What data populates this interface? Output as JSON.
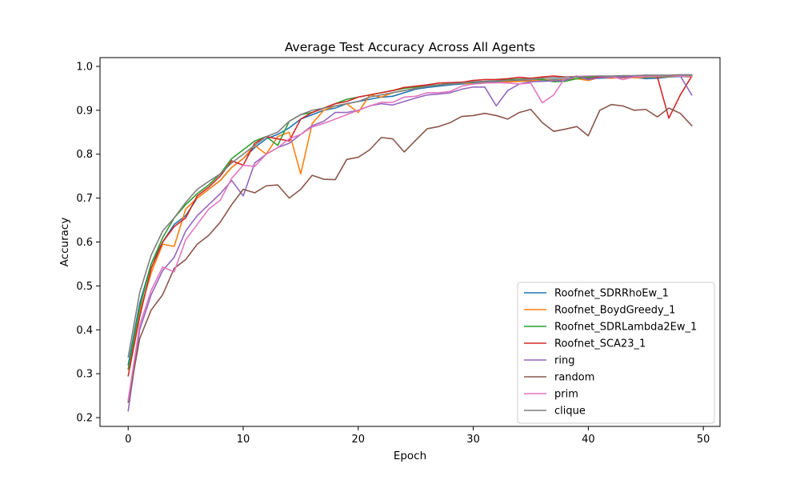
{
  "chart_data": {
    "type": "line",
    "title": "Average Test Accuracy Across All Agents",
    "xlabel": "Epoch",
    "ylabel": "Accuracy",
    "xlim": [
      -2.45,
      51.45
    ],
    "ylim": [
      0.18,
      1.02
    ],
    "xticks": [
      "0",
      "10",
      "20",
      "30",
      "40",
      "50"
    ],
    "yticks": [
      "0.2",
      "0.3",
      "0.4",
      "0.5",
      "0.6",
      "0.7",
      "0.8",
      "0.9",
      "1.0"
    ],
    "grid": false,
    "legend_position": "lower-right",
    "series": [
      {
        "name": "Roofnet_SDRRhoEw_1",
        "color": "#1f77b4",
        "values": [
          0.32,
          0.46,
          0.55,
          0.6,
          0.64,
          0.66,
          0.7,
          0.72,
          0.74,
          0.77,
          0.79,
          0.815,
          0.835,
          0.845,
          0.86,
          0.88,
          0.89,
          0.9,
          0.905,
          0.915,
          0.92,
          0.925,
          0.93,
          0.932,
          0.94,
          0.948,
          0.952,
          0.955,
          0.958,
          0.96,
          0.962,
          0.963,
          0.965,
          0.966,
          0.967,
          0.968,
          0.969,
          0.97,
          0.971,
          0.972,
          0.972,
          0.973,
          0.974,
          0.974,
          0.975,
          0.972,
          0.973,
          0.976,
          0.977,
          0.976
        ]
      },
      {
        "name": "Roofnet_BoydGreedy_1",
        "color": "#ff7f0e",
        "values": [
          0.31,
          0.44,
          0.53,
          0.595,
          0.59,
          0.675,
          0.7,
          0.72,
          0.74,
          0.77,
          0.79,
          0.82,
          0.8,
          0.84,
          0.85,
          0.755,
          0.87,
          0.9,
          0.91,
          0.915,
          0.895,
          0.935,
          0.93,
          0.94,
          0.945,
          0.95,
          0.955,
          0.958,
          0.96,
          0.962,
          0.96,
          0.962,
          0.963,
          0.965,
          0.966,
          0.967,
          0.97,
          0.968,
          0.97,
          0.972,
          0.968,
          0.975,
          0.973,
          0.975,
          0.974,
          0.975,
          0.976,
          0.977,
          0.978,
          0.976
        ]
      },
      {
        "name": "Roofnet_SDRLambda2Ew_1",
        "color": "#2ca02c",
        "values": [
          0.31,
          0.45,
          0.55,
          0.61,
          0.655,
          0.685,
          0.71,
          0.73,
          0.755,
          0.79,
          0.81,
          0.83,
          0.84,
          0.82,
          0.875,
          0.89,
          0.895,
          0.905,
          0.915,
          0.925,
          0.93,
          0.935,
          0.94,
          0.945,
          0.95,
          0.953,
          0.956,
          0.958,
          0.961,
          0.962,
          0.964,
          0.966,
          0.967,
          0.97,
          0.971,
          0.972,
          0.97,
          0.965,
          0.966,
          0.972,
          0.975,
          0.976,
          0.977,
          0.978,
          0.978,
          0.976,
          0.977,
          0.978,
          0.979,
          0.98
        ]
      },
      {
        "name": "Roofnet_SCA23_1",
        "color": "#d62728",
        "values": [
          0.295,
          0.43,
          0.54,
          0.6,
          0.635,
          0.655,
          0.705,
          0.725,
          0.75,
          0.785,
          0.775,
          0.825,
          0.84,
          0.835,
          0.83,
          0.88,
          0.895,
          0.905,
          0.915,
          0.92,
          0.93,
          0.935,
          0.94,
          0.945,
          0.952,
          0.955,
          0.958,
          0.962,
          0.963,
          0.964,
          0.968,
          0.97,
          0.97,
          0.972,
          0.975,
          0.973,
          0.976,
          0.978,
          0.976,
          0.977,
          0.971,
          0.976,
          0.975,
          0.976,
          0.977,
          0.98,
          0.977,
          0.882,
          0.935,
          0.978
        ]
      },
      {
        "name": "ring",
        "color": "#9467bd",
        "values": [
          0.215,
          0.4,
          0.48,
          0.535,
          0.565,
          0.625,
          0.66,
          0.685,
          0.71,
          0.74,
          0.705,
          0.78,
          0.8,
          0.815,
          0.825,
          0.845,
          0.865,
          0.875,
          0.895,
          0.895,
          0.9,
          0.91,
          0.915,
          0.912,
          0.92,
          0.928,
          0.935,
          0.937,
          0.94,
          0.948,
          0.953,
          0.953,
          0.91,
          0.945,
          0.96,
          0.965,
          0.966,
          0.967,
          0.968,
          0.978,
          0.97,
          0.974,
          0.975,
          0.976,
          0.978,
          0.977,
          0.978,
          0.979,
          0.978,
          0.935
        ]
      },
      {
        "name": "random",
        "color": "#8c564b",
        "values": [
          0.235,
          0.38,
          0.445,
          0.48,
          0.54,
          0.56,
          0.595,
          0.615,
          0.645,
          0.685,
          0.72,
          0.712,
          0.728,
          0.73,
          0.7,
          0.72,
          0.752,
          0.743,
          0.742,
          0.788,
          0.793,
          0.81,
          0.838,
          0.835,
          0.805,
          0.832,
          0.858,
          0.863,
          0.872,
          0.886,
          0.888,
          0.893,
          0.888,
          0.88,
          0.895,
          0.902,
          0.872,
          0.852,
          0.857,
          0.863,
          0.842,
          0.9,
          0.913,
          0.91,
          0.9,
          0.902,
          0.885,
          0.905,
          0.893,
          0.865
        ]
      },
      {
        "name": "prim",
        "color": "#e377c2",
        "values": [
          0.24,
          0.41,
          0.49,
          0.543,
          0.532,
          0.605,
          0.64,
          0.675,
          0.695,
          0.745,
          0.775,
          0.772,
          0.8,
          0.815,
          0.835,
          0.845,
          0.862,
          0.87,
          0.88,
          0.89,
          0.9,
          0.91,
          0.918,
          0.918,
          0.93,
          0.932,
          0.94,
          0.94,
          0.943,
          0.955,
          0.96,
          0.962,
          0.963,
          0.962,
          0.96,
          0.962,
          0.917,
          0.935,
          0.975,
          0.977,
          0.978,
          0.978,
          0.977,
          0.97,
          0.976,
          0.977,
          0.978,
          0.979,
          0.978,
          0.977
        ]
      },
      {
        "name": "clique",
        "color": "#7f7f7f",
        "values": [
          0.338,
          0.485,
          0.57,
          0.625,
          0.655,
          0.69,
          0.72,
          0.738,
          0.755,
          0.78,
          0.8,
          0.82,
          0.84,
          0.85,
          0.875,
          0.89,
          0.9,
          0.905,
          0.91,
          0.915,
          0.92,
          0.93,
          0.935,
          0.94,
          0.945,
          0.95,
          0.955,
          0.958,
          0.96,
          0.962,
          0.965,
          0.966,
          0.967,
          0.968,
          0.97,
          0.971,
          0.973,
          0.974,
          0.975,
          0.976,
          0.977,
          0.978,
          0.978,
          0.979,
          0.979,
          0.98,
          0.98,
          0.98,
          0.981,
          0.981
        ]
      }
    ]
  }
}
